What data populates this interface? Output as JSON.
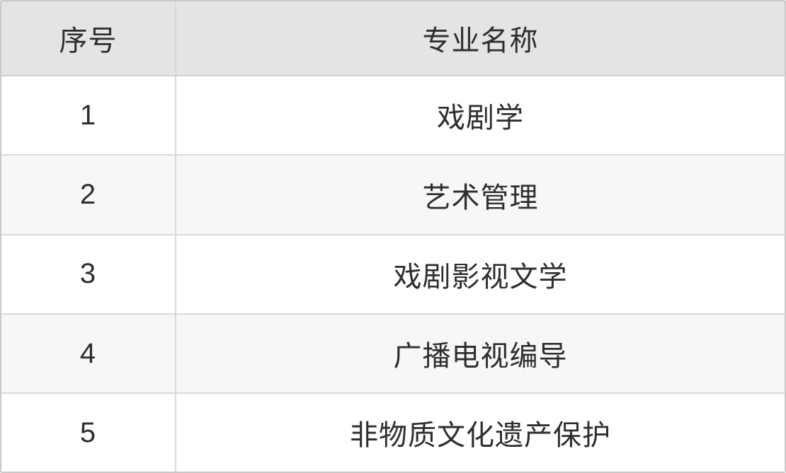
{
  "table": {
    "columns": [
      {
        "label": "序号"
      },
      {
        "label": "专业名称"
      }
    ],
    "rows": [
      {
        "index": "1",
        "name": "戏剧学"
      },
      {
        "index": "2",
        "name": "艺术管理"
      },
      {
        "index": "3",
        "name": "戏剧影视文学"
      },
      {
        "index": "4",
        "name": "广播电视编导"
      },
      {
        "index": "5",
        "name": "非物质文化遗产保护"
      }
    ],
    "colors": {
      "header_bg": "#e4e4e4",
      "stripe_row_bg": "#f7f7f7",
      "row_bg": "#ffffff",
      "inner_border": "#d9d9d9",
      "outer_border": "#c9c9c9",
      "text": "#2e2e2e"
    }
  },
  "chart_data": {
    "type": "table",
    "title": "",
    "columns": [
      "序号",
      "专业名称"
    ],
    "rows": [
      [
        "1",
        "戏剧学"
      ],
      [
        "2",
        "艺术管理"
      ],
      [
        "3",
        "戏剧影视文学"
      ],
      [
        "4",
        "广播电视编导"
      ],
      [
        "5",
        "非物质文化遗产保护"
      ]
    ]
  }
}
